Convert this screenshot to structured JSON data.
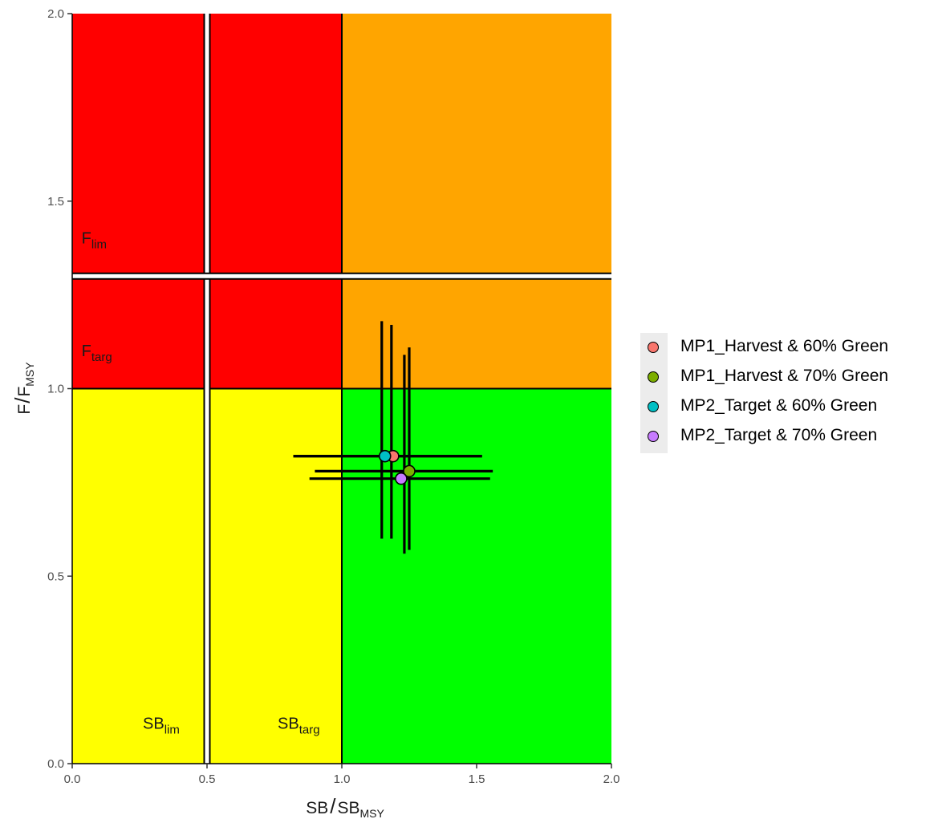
{
  "chart_data": {
    "type": "scatter",
    "title": "",
    "xlabel": {
      "main": "SB",
      "denom": "SB",
      "sub": "MSY"
    },
    "ylabel": {
      "main": "F",
      "denom": "F",
      "sub": "MSY"
    },
    "xlim": [
      0,
      2
    ],
    "ylim": [
      0,
      2
    ],
    "x_ticks": [
      "0.0",
      "0.5",
      "1.0",
      "1.5",
      "2.0"
    ],
    "y_ticks": [
      "0.0",
      "0.5",
      "1.0",
      "1.5",
      "2.0"
    ],
    "grid": false,
    "legend_position": "right",
    "zones": [
      {
        "name": "red",
        "color": "#ff0000",
        "x": [
          0,
          1
        ],
        "y": [
          1,
          2
        ]
      },
      {
        "name": "orange",
        "color": "#ffa500",
        "x": [
          1,
          2
        ],
        "y": [
          1,
          2
        ]
      },
      {
        "name": "yellow",
        "color": "#ffff00",
        "x": [
          0,
          1
        ],
        "y": [
          0,
          1
        ]
      },
      {
        "name": "green",
        "color": "#00ff00",
        "x": [
          1,
          2
        ],
        "y": [
          0,
          1
        ]
      }
    ],
    "reference_lines": [
      {
        "axis": "x",
        "value": 0.5,
        "label_main": "SB",
        "label_sub": "lim"
      },
      {
        "axis": "x",
        "value": 1.0,
        "label_main": "SB",
        "label_sub": "targ"
      },
      {
        "axis": "y",
        "value": 1.3,
        "label_main": "F",
        "label_sub": "lim"
      },
      {
        "axis": "y",
        "value": 1.0,
        "label_main": "F",
        "label_sub": "targ"
      }
    ],
    "series": [
      {
        "name": "MP1_Harvest & 60% Green",
        "color": "#f8766d",
        "x": 1.19,
        "y": 0.82,
        "x_range": [
          0.82,
          1.52
        ],
        "y_range": [
          0.6,
          1.17
        ]
      },
      {
        "name": "MP1_Harvest & 70% Green",
        "color": "#7cae00",
        "x": 1.25,
        "y": 0.78,
        "x_range": [
          0.9,
          1.56
        ],
        "y_range": [
          0.57,
          1.11
        ]
      },
      {
        "name": "MP2_Target & 60% Green",
        "color": "#00bfc4",
        "x": 1.16,
        "y": 0.82,
        "x_range": [
          0.82,
          1.52
        ],
        "y_range": [
          0.6,
          1.18
        ]
      },
      {
        "name": "MP2_Target & 70% Green",
        "color": "#c77cff",
        "x": 1.22,
        "y": 0.76,
        "x_range": [
          0.88,
          1.55
        ],
        "y_range": [
          0.56,
          1.09
        ]
      }
    ]
  }
}
